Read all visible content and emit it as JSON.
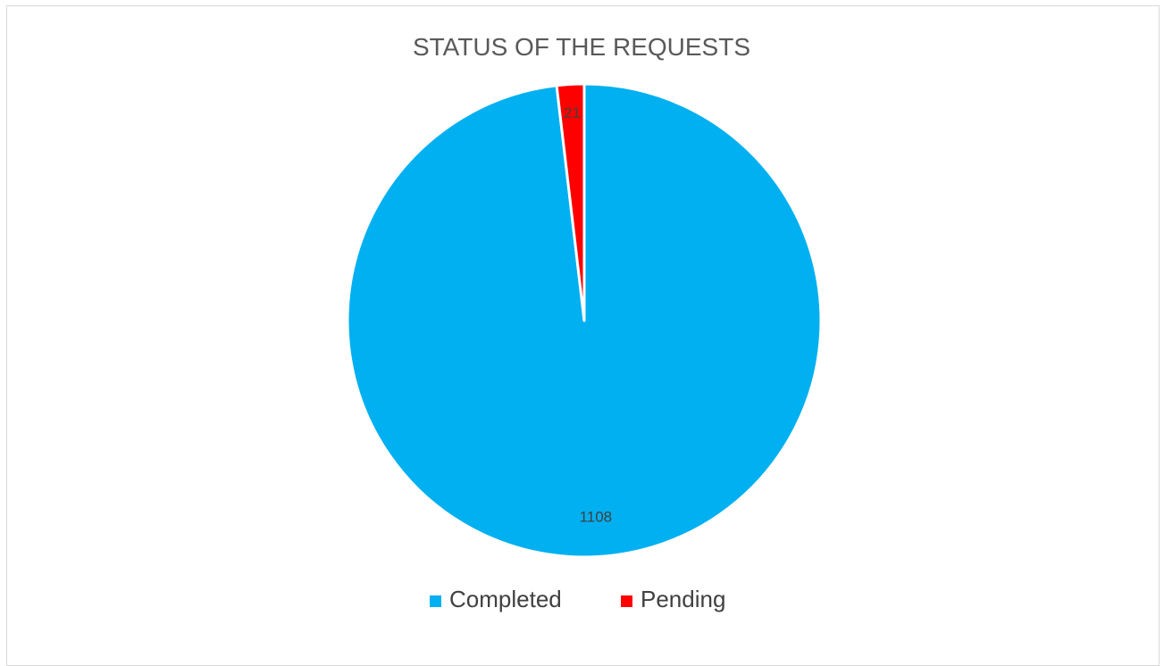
{
  "chart_data": {
    "type": "pie",
    "title": "STATUS OF THE REQUESTS",
    "categories": [
      "Completed",
      "Pending"
    ],
    "values": [
      1108,
      21
    ],
    "colors": [
      "#00B0F0",
      "#FF0000"
    ],
    "data_labels": [
      "1108",
      "21"
    ],
    "legend": {
      "position": "bottom",
      "entries": [
        "Completed",
        "Pending"
      ]
    }
  }
}
